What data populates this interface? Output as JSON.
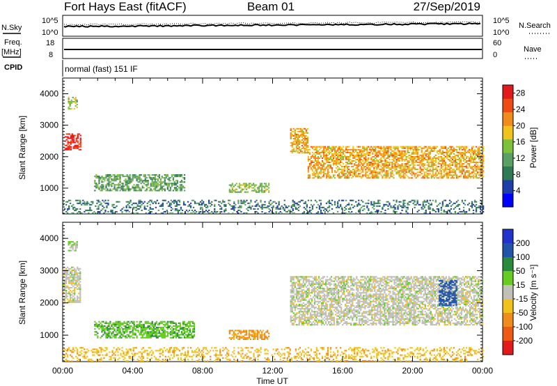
{
  "header": {
    "station": "Fort Hays East (fitACF)",
    "beam": "Beam 01",
    "date": "27/Sep/2019"
  },
  "params": {
    "nsky_label": "N.Sky",
    "nsearch_label": "N.Search",
    "freq_label_1": "Freq.",
    "freq_label_2": "[MHz]",
    "nave_label": "Nave",
    "cpid_label": "CPID",
    "cpid_value": "normal (fast) 151 IF",
    "noise_ticks_left": [
      "10^5",
      "10^0"
    ],
    "noise_ticks_right": [
      "10^5",
      "10^0"
    ],
    "freq_ticks": [
      "18",
      "8"
    ],
    "nave_ticks": [
      "60",
      "0"
    ]
  },
  "colors": {
    "power_scale": [
      "#0000ff",
      "#1f3fa8",
      "#2e7a55",
      "#5aa064",
      "#7ec23c",
      "#f2c21c",
      "#f08c1c",
      "#ee4c14",
      "#e31a1c"
    ],
    "velocity_scale": [
      "#2233cc",
      "#2255aa",
      "#2a8a3c",
      "#66cc22",
      "#c0c0b8",
      "#f2c21c",
      "#f08c1c",
      "#ee5a14",
      "#e31a1c"
    ]
  },
  "chart_data": [
    {
      "type": "heatmap",
      "title": "",
      "xlabel": "Time UT",
      "ylabel": "Slant Range [km]",
      "x_range": [
        "00:00",
        "00:00"
      ],
      "x_tick_labels": [
        "00:00",
        "04:00",
        "08:00",
        "12:00",
        "16:00",
        "20:00",
        "00:00"
      ],
      "y_range": [
        180,
        4500
      ],
      "y_tick_labels": [
        "1000",
        "2000",
        "3000",
        "4000"
      ],
      "colorbar": {
        "label": "Power [dB]",
        "range": [
          0,
          30
        ],
        "tick_labels": [
          "28",
          "24",
          "20",
          "16",
          "12",
          "8",
          "4"
        ]
      },
      "echo_regions": [
        {
          "t_start_h": 0.1,
          "t_end_h": 1.0,
          "r_start_km": 2200,
          "r_end_km": 2700,
          "level": 28
        },
        {
          "t_start_h": 0.3,
          "t_end_h": 0.8,
          "r_start_km": 3500,
          "r_end_km": 3900,
          "level": 16
        },
        {
          "t_start_h": 1.8,
          "t_end_h": 7.0,
          "r_start_km": 900,
          "r_end_km": 1400,
          "level": 12
        },
        {
          "t_start_h": 9.5,
          "t_end_h": 11.8,
          "r_start_km": 850,
          "r_end_km": 1150,
          "level": 14
        },
        {
          "t_start_h": 13.0,
          "t_end_h": 14.0,
          "r_start_km": 2100,
          "r_end_km": 2900,
          "level": 20
        },
        {
          "t_start_h": 14.0,
          "t_end_h": 24.0,
          "r_start_km": 1300,
          "r_end_km": 2300,
          "level": 20
        },
        {
          "t_start_h": 0.0,
          "t_end_h": 24.0,
          "r_start_km": 180,
          "r_end_km": 600,
          "level": 8
        }
      ]
    },
    {
      "type": "heatmap",
      "title": "",
      "xlabel": "Time UT",
      "ylabel": "Slant Range [km]",
      "x_range": [
        "00:00",
        "00:00"
      ],
      "x_tick_labels": [
        "00:00",
        "04:00",
        "08:00",
        "12:00",
        "16:00",
        "20:00",
        "00:00"
      ],
      "y_range": [
        180,
        4500
      ],
      "y_tick_labels": [
        "1000",
        "2000",
        "3000",
        "4000"
      ],
      "colorbar": {
        "label": "Velocity [m s⁻¹]",
        "range": [
          -250,
          250
        ],
        "tick_labels": [
          "200",
          "100",
          "50",
          "15",
          "-15",
          "-50",
          "-100",
          "-200"
        ]
      },
      "echo_regions": [
        {
          "t_start_h": 0.0,
          "t_end_h": 1.0,
          "r_start_km": 2000,
          "r_end_km": 3100,
          "level": 0
        },
        {
          "t_start_h": 0.3,
          "t_end_h": 0.8,
          "r_start_km": 3600,
          "r_end_km": 3900,
          "level": 15
        },
        {
          "t_start_h": 1.8,
          "t_end_h": 7.5,
          "r_start_km": 900,
          "r_end_km": 1400,
          "level": 40
        },
        {
          "t_start_h": 9.5,
          "t_end_h": 11.8,
          "r_start_km": 850,
          "r_end_km": 1150,
          "level": -60
        },
        {
          "t_start_h": 13.0,
          "t_end_h": 24.0,
          "r_start_km": 1300,
          "r_end_km": 2800,
          "level": 0
        },
        {
          "t_start_h": 21.5,
          "t_end_h": 22.5,
          "r_start_km": 1900,
          "r_end_km": 2700,
          "level": 150
        },
        {
          "t_start_h": 0.0,
          "t_end_h": 24.0,
          "r_start_km": 180,
          "r_end_km": 600,
          "level": -40
        }
      ]
    }
  ]
}
